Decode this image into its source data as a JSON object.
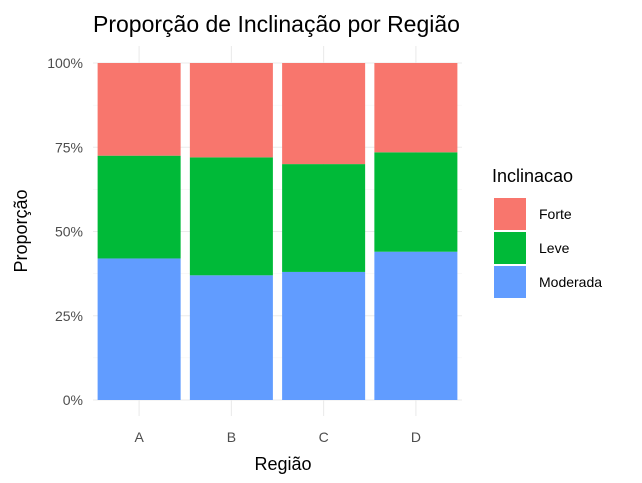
{
  "chart_data": {
    "type": "bar",
    "stacked": true,
    "normalized": true,
    "title": "Proporção de Inclinação por Região",
    "xlabel": "Região",
    "ylabel": "Proporção",
    "categories": [
      "A",
      "B",
      "C",
      "D"
    ],
    "ylim": [
      0,
      1
    ],
    "y_ticks": [
      0,
      0.25,
      0.5,
      0.75,
      1.0
    ],
    "y_tick_labels": [
      "0%",
      "25%",
      "50%",
      "75%",
      "100%"
    ],
    "grid": true,
    "legend_title": "Inclinacao",
    "legend_position": "right",
    "series": [
      {
        "name": "Moderada",
        "color": "#619CFF",
        "values": [
          0.42,
          0.37,
          0.38,
          0.44
        ]
      },
      {
        "name": "Leve",
        "color": "#00BA38",
        "values": [
          0.305,
          0.35,
          0.32,
          0.295
        ]
      },
      {
        "name": "Forte",
        "color": "#F8766D",
        "values": [
          0.275,
          0.28,
          0.3,
          0.265
        ]
      }
    ],
    "legend_order": [
      "Forte",
      "Leve",
      "Moderada"
    ]
  }
}
